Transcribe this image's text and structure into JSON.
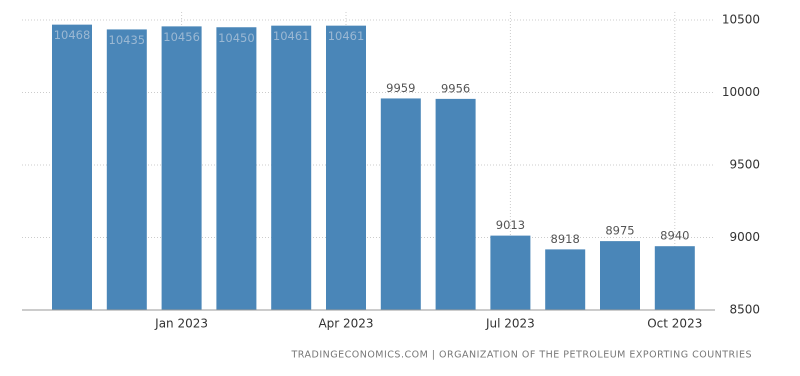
{
  "chart_data": {
    "type": "bar",
    "categories": [
      null,
      null,
      "Jan 2023",
      null,
      null,
      "Apr 2023",
      null,
      null,
      "Jul 2023",
      null,
      null,
      "Oct 2023"
    ],
    "values": [
      10468,
      10435,
      10456,
      10450,
      10461,
      10461,
      9959,
      9956,
      9013,
      8918,
      8975,
      8940
    ],
    "color": "#4a86b8",
    "ylim": [
      8500,
      10500
    ],
    "yticks": [
      8500,
      9000,
      9500,
      10000,
      10500
    ],
    "grid": true,
    "source": "TRADINGECONOMICS.COM | ORGANIZATION OF THE PETROLEUM EXPORTING COUNTRIES"
  }
}
